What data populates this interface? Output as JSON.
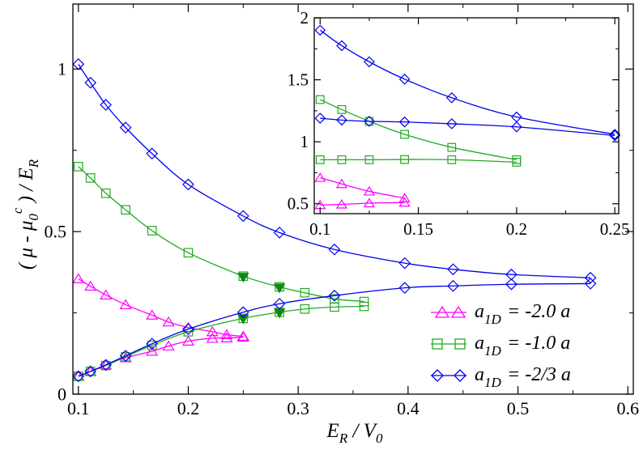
{
  "chart_data": [
    {
      "type": "line",
      "xlabel": "E_R / V_0",
      "ylabel": "( μ - μ_0^c ) / E_R",
      "xlim": [
        0.095,
        0.605
      ],
      "ylim": [
        0,
        1.2
      ],
      "xticks": [
        0.1,
        0.2,
        0.3,
        0.4,
        0.5,
        0.6
      ],
      "yticks": [
        0,
        0.5,
        1
      ],
      "xtick_labels": [
        "0.1",
        "0.2",
        "0.3",
        "0.4",
        "0.5",
        "0.6"
      ],
      "ytick_labels": [
        "0",
        "0.5",
        "1"
      ],
      "legend_position": "bottom-right",
      "series": [
        {
          "name": "a_1D = -2.0 a",
          "legend": "= -2.0 a",
          "color": "#ff00ff",
          "marker": "triangle",
          "upper": {
            "x": [
              0.1,
              0.111,
              0.125,
              0.143,
              0.167,
              0.182,
              0.2,
              0.222,
              0.235,
              0.25
            ],
            "y": [
              0.355,
              0.332,
              0.305,
              0.275,
              0.243,
              0.222,
              0.205,
              0.192,
              0.183,
              0.178
            ]
          },
          "lower": {
            "x": [
              0.1,
              0.111,
              0.125,
              0.143,
              0.167,
              0.182,
              0.2,
              0.222,
              0.235,
              0.25
            ],
            "y": [
              0.055,
              0.07,
              0.09,
              0.112,
              0.132,
              0.148,
              0.163,
              0.172,
              0.173,
              0.175
            ]
          }
        },
        {
          "name": "a_1D = -1.0 a",
          "legend": "= -1.0 a",
          "color": "#22aa22",
          "marker": "square",
          "upper": {
            "x": [
              0.1,
              0.111,
              0.125,
              0.143,
              0.167,
              0.2,
              0.25,
              0.283,
              0.306,
              0.333,
              0.36
            ],
            "y": [
              0.7,
              0.665,
              0.618,
              0.567,
              0.503,
              0.435,
              0.363,
              0.33,
              0.312,
              0.293,
              0.285
            ]
          },
          "lower": {
            "x": [
              0.1,
              0.111,
              0.125,
              0.143,
              0.167,
              0.2,
              0.25,
              0.283,
              0.306,
              0.333,
              0.36
            ],
            "y": [
              0.055,
              0.07,
              0.088,
              0.115,
              0.15,
              0.192,
              0.233,
              0.252,
              0.262,
              0.268,
              0.27
            ]
          },
          "filled_markers": {
            "x": [
              0.25,
              0.283,
              0.25,
              0.283
            ],
            "y": [
              0.36,
              0.327,
              0.232,
              0.25
            ]
          }
        },
        {
          "name": "a_1D = -2/3 a",
          "legend": "= -2/3 a",
          "color": "#0000ee",
          "marker": "diamond",
          "upper": {
            "x": [
              0.1,
              0.111,
              0.125,
              0.143,
              0.167,
              0.2,
              0.25,
              0.283,
              0.333,
              0.397,
              0.441,
              0.494,
              0.566
            ],
            "y": [
              1.015,
              0.958,
              0.89,
              0.82,
              0.74,
              0.645,
              0.548,
              0.497,
              0.445,
              0.403,
              0.384,
              0.368,
              0.358
            ]
          },
          "lower": {
            "x": [
              0.1,
              0.111,
              0.125,
              0.143,
              0.167,
              0.2,
              0.25,
              0.283,
              0.333,
              0.397,
              0.441,
              0.494,
              0.566
            ],
            "y": [
              0.055,
              0.07,
              0.09,
              0.118,
              0.155,
              0.2,
              0.252,
              0.278,
              0.303,
              0.327,
              0.333,
              0.338,
              0.34
            ]
          }
        }
      ]
    },
    {
      "type": "line",
      "title": "inset",
      "xlim": [
        0.097,
        0.252
      ],
      "ylim": [
        0.42,
        2.0
      ],
      "xticks": [
        0.1,
        0.15,
        0.2,
        0.25
      ],
      "yticks": [
        0.5,
        1,
        1.5,
        2
      ],
      "xtick_labels": [
        "0.1",
        "0.15",
        "0.2",
        "0.25"
      ],
      "ytick_labels": [
        "0.5",
        "1",
        "1.5",
        "2"
      ],
      "series": [
        {
          "name": "a_1D = -2.0 a",
          "color": "#ff00ff",
          "marker": "triangle",
          "upper": {
            "x": [
              0.1,
              0.111,
              0.125,
              0.143
            ],
            "y": [
              0.71,
              0.66,
              0.6,
              0.545
            ]
          },
          "lower": {
            "x": [
              0.1,
              0.111,
              0.125,
              0.143
            ],
            "y": [
              0.49,
              0.495,
              0.505,
              0.51
            ]
          }
        },
        {
          "name": "a_1D = -1.0 a",
          "color": "#22aa22",
          "marker": "square",
          "upper": {
            "x": [
              0.1,
              0.111,
              0.125,
              0.143,
              0.167,
              0.2
            ],
            "y": [
              1.34,
              1.26,
              1.165,
              1.06,
              0.955,
              0.855
            ]
          },
          "lower": {
            "x": [
              0.1,
              0.111,
              0.125,
              0.143,
              0.167,
              0.2
            ],
            "y": [
              0.855,
              0.855,
              0.855,
              0.857,
              0.855,
              0.835
            ]
          }
        },
        {
          "name": "a_1D = -2/3 a",
          "color": "#0000ee",
          "marker": "diamond",
          "upper": {
            "x": [
              0.1,
              0.111,
              0.125,
              0.143,
              0.167,
              0.2,
              0.25
            ],
            "y": [
              1.9,
              1.775,
              1.645,
              1.505,
              1.355,
              1.2,
              1.06
            ]
          },
          "lower": {
            "x": [
              0.1,
              0.111,
              0.125,
              0.143,
              0.167,
              0.2,
              0.25
            ],
            "y": [
              1.19,
              1.175,
              1.165,
              1.16,
              1.145,
              1.12,
              1.05
            ]
          }
        }
      ]
    }
  ]
}
